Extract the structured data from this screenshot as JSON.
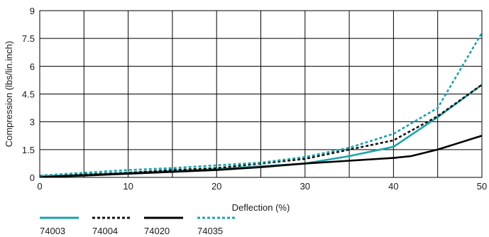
{
  "chart_data": {
    "type": "line",
    "title": "",
    "xlabel": "Deflection (%)",
    "ylabel": "Compression (lbs/lin.inch)",
    "xlim": [
      0,
      50
    ],
    "ylim": [
      0,
      9
    ],
    "x_ticks": [
      0,
      10,
      20,
      30,
      40,
      50
    ],
    "x_tick_labels": [
      "0",
      "10",
      "20",
      "30",
      "40",
      "50"
    ],
    "y_ticks": [
      0,
      1.5,
      3,
      4.5,
      6,
      7.5,
      9
    ],
    "y_tick_labels": [
      "0",
      "1.5",
      "3",
      "4.5",
      "6",
      "7.5",
      "9"
    ],
    "x_grid": [
      0,
      5,
      10,
      15,
      20,
      25,
      30,
      35,
      40,
      45,
      50
    ],
    "y_grid": [
      0,
      1.5,
      3,
      4.5,
      6,
      7.5,
      9
    ],
    "grid": true,
    "legend_position": "bottom-left",
    "series": [
      {
        "name": "74003",
        "color": "#1aa3a8",
        "dash": "solid",
        "x": [
          0,
          5,
          10,
          15,
          20,
          25,
          30,
          35,
          40,
          45,
          50
        ],
        "y": [
          0.05,
          0.15,
          0.25,
          0.35,
          0.45,
          0.6,
          0.75,
          1.15,
          1.65,
          3.25,
          5.0
        ]
      },
      {
        "name": "74004",
        "color": "#111111",
        "dash": "dotted",
        "x": [
          0,
          5,
          10,
          15,
          20,
          25,
          30,
          35,
          40,
          45,
          50
        ],
        "y": [
          0.05,
          0.15,
          0.25,
          0.4,
          0.5,
          0.75,
          1.0,
          1.5,
          2.0,
          3.3,
          5.0
        ]
      },
      {
        "name": "74020",
        "color": "#000000",
        "dash": "solid",
        "x": [
          0,
          5,
          10,
          15,
          20,
          25,
          30,
          35,
          40,
          42,
          45,
          50
        ],
        "y": [
          0.03,
          0.1,
          0.2,
          0.3,
          0.4,
          0.55,
          0.75,
          0.9,
          1.05,
          1.15,
          1.5,
          2.25
        ]
      },
      {
        "name": "74035",
        "color": "#1aa3a8",
        "dash": "dotted",
        "x": [
          0,
          5,
          10,
          15,
          20,
          25,
          30,
          35,
          40,
          45,
          50
        ],
        "y": [
          0.1,
          0.25,
          0.4,
          0.5,
          0.65,
          0.8,
          1.1,
          1.6,
          2.35,
          3.75,
          7.8
        ]
      }
    ]
  }
}
